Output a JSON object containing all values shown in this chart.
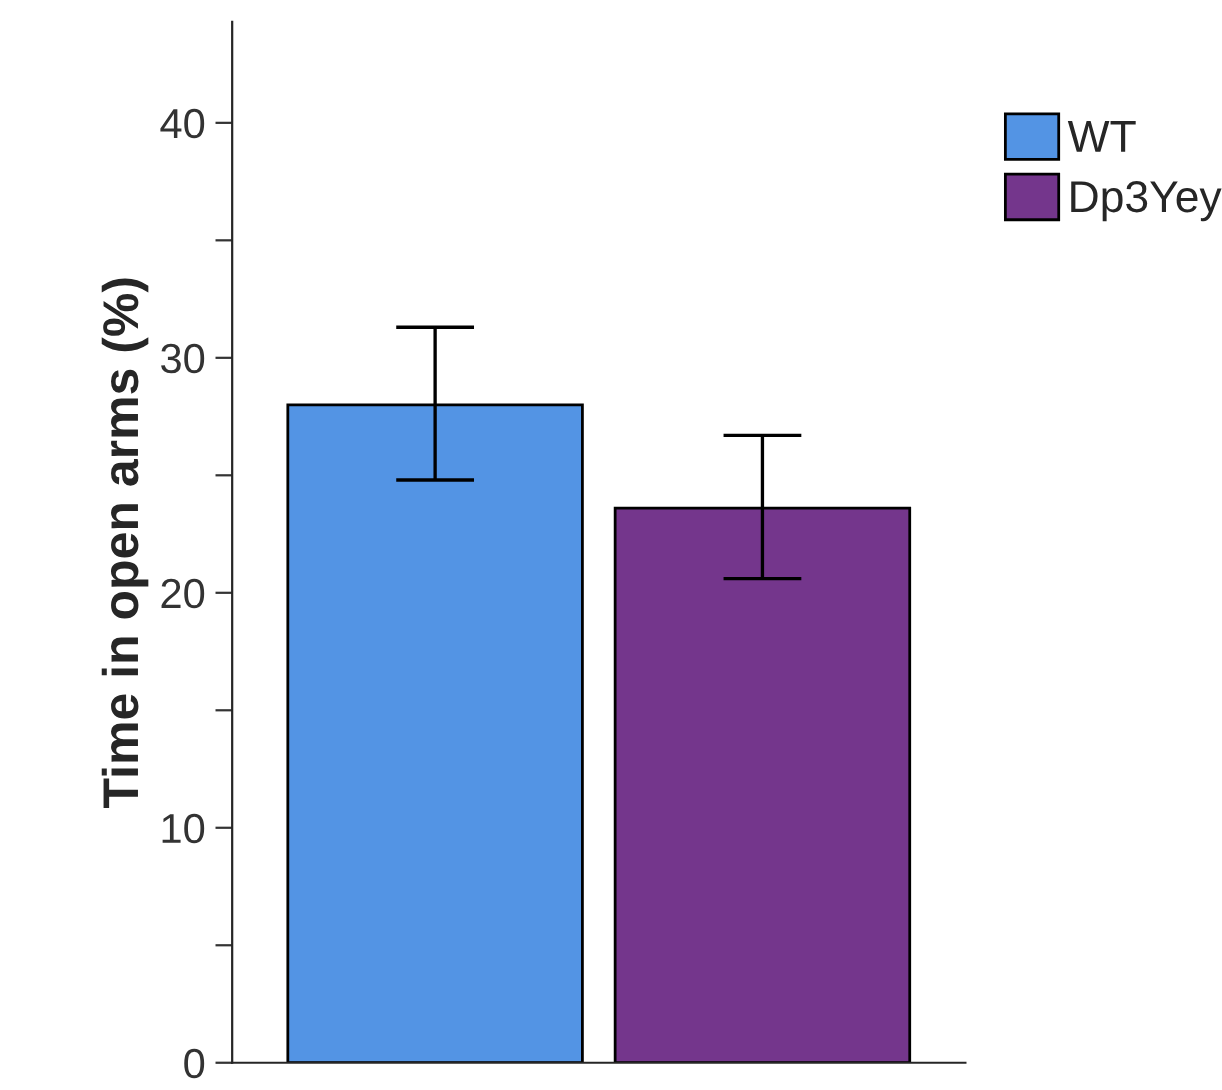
{
  "chart_data": {
    "type": "bar",
    "ylabel": "Time in open arms (%)",
    "categories": [
      null,
      null
    ],
    "series": [
      {
        "name": "WT",
        "color": "#5394e4",
        "values": [
          28.0,
          null
        ],
        "errors": [
          [
            24.8,
            31.3
          ],
          null
        ]
      },
      {
        "name": "Dp3Yey",
        "color": "#74368c",
        "values": [
          null,
          23.6
        ],
        "errors": [
          null,
          [
            20.6,
            26.7
          ]
        ]
      }
    ],
    "ylim": [
      0,
      44.3
    ],
    "yticks": [
      0,
      {
        "value": 5,
        "label": null
      },
      10,
      {
        "value": 15,
        "label": null
      },
      20,
      {
        "value": 25,
        "label": null
      },
      30,
      {
        "value": 35,
        "label": null
      },
      40
    ],
    "grid": false,
    "legend": "top right"
  }
}
